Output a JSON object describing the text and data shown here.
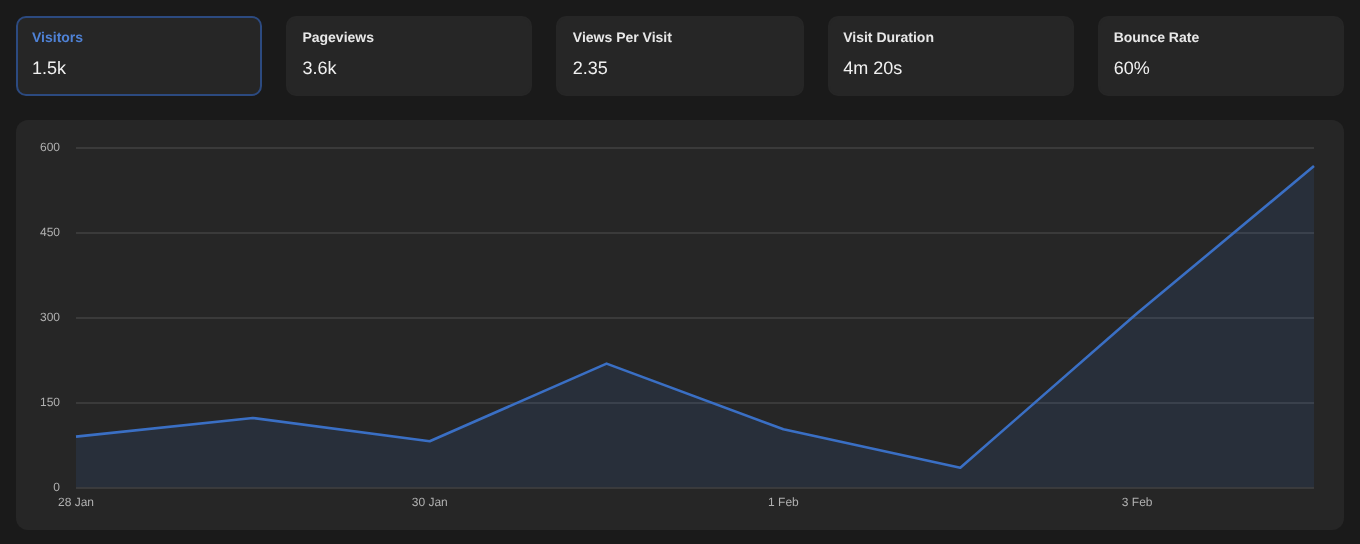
{
  "chart_data": [
    {
      "type": "other",
      "categories": [
        "Visitors",
        "Pageviews",
        "Views Per Visit",
        "Visit Duration",
        "Bounce Rate"
      ],
      "value_labels": [
        "1.5k",
        "3.6k",
        "2.35",
        "4m 20s",
        "60%"
      ]
    },
    {
      "type": "area",
      "categories": [
        "28 Jan",
        null,
        "30 Jan",
        null,
        "1 Feb",
        null,
        "3 Feb",
        null
      ],
      "series": [
        {
          "color": "#3a6fc4",
          "values": [
            90,
            123,
            82,
            219,
            103,
            35,
            308,
            568
          ]
        }
      ],
      "ylim": [
        0,
        600
      ],
      "yticks": [
        0,
        150,
        300,
        450,
        600
      ],
      "grid": "y",
      "legend": false
    }
  ]
}
